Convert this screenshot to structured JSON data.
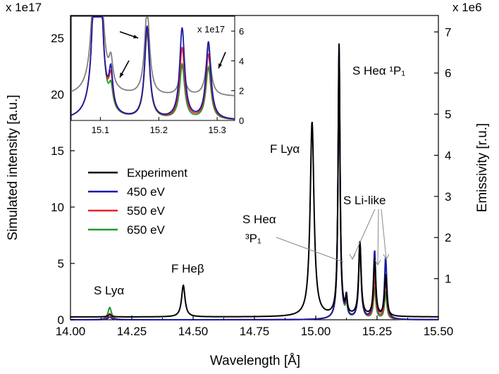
{
  "chart_data": {
    "type": "line",
    "title": "",
    "xlabel": "Wavelength [Å]",
    "ylabel_left": "Simulated intensity [a.u.]",
    "ylabel_right": "Emissivity [r.u.]",
    "left_scale_label": "x 1e17",
    "right_scale_label": "x 1e6",
    "xlim": [
      14.0,
      15.5
    ],
    "ylim_left": [
      0,
      27
    ],
    "ylim_right": [
      0,
      7.4
    ],
    "x_ticks": [
      "14.00",
      "14.25",
      "14.50",
      "14.75",
      "15.00",
      "15.25",
      "15.50"
    ],
    "y_left_ticks": [
      "0",
      "5",
      "10",
      "15",
      "20",
      "25"
    ],
    "y_right_ticks": [
      "1",
      "2",
      "3",
      "4",
      "5",
      "6",
      "7"
    ],
    "legend": {
      "position": "middle-left",
      "entries": [
        {
          "label": "Experiment",
          "color": "#000000"
        },
        {
          "label": "450 eV",
          "color": "#1a1aa6"
        },
        {
          "label": "550 eV",
          "color": "#e8232a"
        },
        {
          "label": "650 eV",
          "color": "#1f9a2e"
        }
      ]
    },
    "annotations": [
      {
        "text": "S Lyα",
        "x": 14.16
      },
      {
        "text": "F Heβ",
        "x": 14.46
      },
      {
        "text": "F Lyα",
        "x": 14.98
      },
      {
        "text": "S Heα ¹P₁",
        "x": 15.09
      },
      {
        "text": "S Heα",
        "x": 15.18
      },
      {
        "text": "³P₁",
        "x": 15.18
      },
      {
        "text": "S Li-like",
        "x": 15.24
      }
    ],
    "series": [
      {
        "name": "Experiment",
        "axis": "left",
        "peaks": [
          [
            14.16,
            0.2
          ],
          [
            14.46,
            2.8
          ],
          [
            14.985,
            17.3
          ],
          [
            15.095,
            24.0
          ],
          [
            15.125,
            1.4
          ],
          [
            15.18,
            6.6
          ],
          [
            15.24,
            5.0
          ],
          [
            15.285,
            3.7
          ]
        ]
      },
      {
        "name": "450 eV",
        "axis": "right",
        "peaks": [
          [
            14.16,
            0.07
          ],
          [
            15.095,
            6.7
          ],
          [
            15.125,
            0.5
          ],
          [
            15.18,
            1.85
          ],
          [
            15.24,
            1.65
          ],
          [
            15.285,
            1.5
          ]
        ]
      },
      {
        "name": "550 eV",
        "axis": "right",
        "peaks": [
          [
            14.16,
            0.15
          ],
          [
            15.095,
            6.6
          ],
          [
            15.125,
            0.45
          ],
          [
            15.18,
            1.8
          ],
          [
            15.24,
            1.1
          ],
          [
            15.285,
            1.0
          ]
        ]
      },
      {
        "name": "650 eV",
        "axis": "right",
        "peaks": [
          [
            14.16,
            0.3
          ],
          [
            15.095,
            6.5
          ],
          [
            15.125,
            0.32
          ],
          [
            15.18,
            1.75
          ],
          [
            15.24,
            0.75
          ],
          [
            15.285,
            0.65
          ]
        ]
      }
    ],
    "inset": {
      "scale_label": "x 1e17",
      "xlim": [
        15.05,
        15.33
      ],
      "ylim": [
        0,
        7
      ],
      "x_ticks": [
        "15.1",
        "15.2",
        "15.3"
      ],
      "y_ticks": [
        "0",
        "2",
        "4",
        "6"
      ],
      "series": [
        {
          "name": "Experiment",
          "color": "#808080",
          "peaks": [
            [
              15.095,
              30
            ],
            [
              15.118,
              1.7
            ],
            [
              15.18,
              5.8
            ],
            [
              15.24,
              2.1
            ],
            [
              15.285,
              3.2
            ]
          ],
          "base": 1.6
        },
        {
          "name": "450 eV",
          "color": "#1a1aa6",
          "peaks": [
            [
              15.095,
              30
            ],
            [
              15.118,
              2.5
            ],
            [
              15.18,
              6.2
            ],
            [
              15.24,
              6.1
            ],
            [
              15.285,
              5.2
            ]
          ],
          "base": 0
        },
        {
          "name": "550 eV",
          "color": "#e8232a",
          "peaks": [
            [
              15.095,
              30
            ],
            [
              15.118,
              2.1
            ],
            [
              15.18,
              6.0
            ],
            [
              15.24,
              4.8
            ],
            [
              15.285,
              4.4
            ]
          ],
          "base": 0
        },
        {
          "name": "650 eV",
          "color": "#1f9a2e",
          "peaks": [
            [
              15.095,
              30
            ],
            [
              15.118,
              1.4
            ],
            [
              15.18,
              5.8
            ],
            [
              15.24,
              3.6
            ],
            [
              15.285,
              3.5
            ]
          ],
          "base": 0
        }
      ]
    }
  }
}
